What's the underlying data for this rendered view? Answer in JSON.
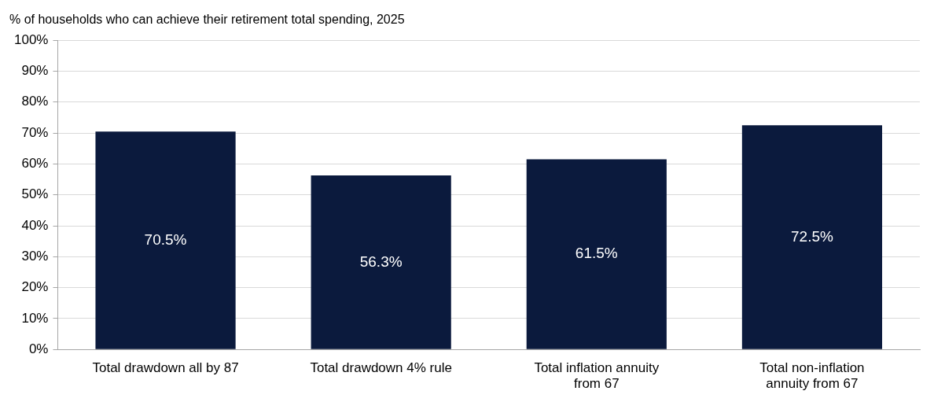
{
  "chart_data": {
    "type": "bar",
    "title": "% of households who can achieve their retirement total spending, 2025",
    "categories": [
      "Total drawdown all by 87",
      "Total drawdown 4% rule",
      "Total inflation annuity from 67",
      "Total non-inflation annuity from 67"
    ],
    "values": [
      70.5,
      56.3,
      61.5,
      72.5
    ],
    "value_labels": [
      "70.5%",
      "56.3%",
      "61.5%",
      "72.5%"
    ],
    "color": "#0b1a3d",
    "ylim": [
      0,
      100
    ],
    "yticks": [
      {
        "value": 0,
        "label": "0%"
      },
      {
        "value": 10,
        "label": "10%"
      },
      {
        "value": 20,
        "label": "20%"
      },
      {
        "value": 30,
        "label": "30%"
      },
      {
        "value": 40,
        "label": "40%"
      },
      {
        "value": 50,
        "label": "50%"
      },
      {
        "value": 60,
        "label": "60%"
      },
      {
        "value": 70,
        "label": "70%"
      },
      {
        "value": 80,
        "label": "80%"
      },
      {
        "value": 90,
        "label": "90%"
      },
      {
        "value": 100,
        "label": "100%"
      }
    ],
    "grid": "y"
  }
}
